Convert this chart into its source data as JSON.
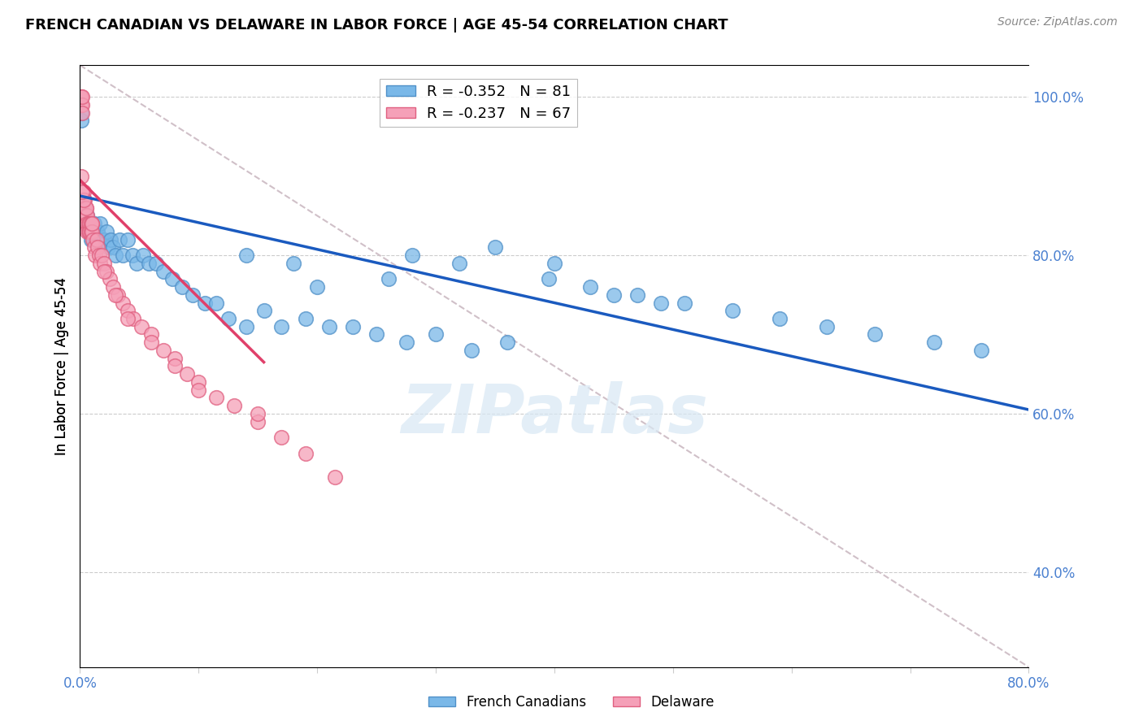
{
  "title": "FRENCH CANADIAN VS DELAWARE IN LABOR FORCE | AGE 45-54 CORRELATION CHART",
  "source": "Source: ZipAtlas.com",
  "ylabel": "In Labor Force | Age 45-54",
  "xlim": [
    0.0,
    0.8
  ],
  "ylim": [
    0.28,
    1.04
  ],
  "xticks": [
    0.0,
    0.1,
    0.2,
    0.3,
    0.4,
    0.5,
    0.6,
    0.7,
    0.8
  ],
  "xtick_labels": [
    "0.0%",
    "",
    "",
    "",
    "",
    "",
    "",
    "",
    "80.0%"
  ],
  "yticks": [
    0.4,
    0.6,
    0.8,
    1.0
  ],
  "ytick_labels": [
    "40.0%",
    "60.0%",
    "80.0%",
    "100.0%"
  ],
  "blue_R": -0.352,
  "blue_N": 81,
  "pink_R": -0.237,
  "pink_N": 67,
  "blue_label": "French Canadians",
  "pink_label": "Delaware",
  "blue_dot_color": "#7ab8e8",
  "blue_edge_color": "#5090c8",
  "pink_dot_color": "#f5a0b8",
  "pink_edge_color": "#e06080",
  "blue_line_color": "#1a5abf",
  "pink_line_color": "#e0406a",
  "ref_line_color": "#d0c0c8",
  "grid_color": "#cccccc",
  "axis_tick_color": "#4a80d0",
  "watermark": "ZIPatlas",
  "watermark_color": "#d8e8f4",
  "blue_trend_x0": 0.0,
  "blue_trend_y0": 0.875,
  "blue_trend_x1": 0.8,
  "blue_trend_y1": 0.605,
  "pink_trend_x0": 0.0,
  "pink_trend_y0": 0.895,
  "pink_trend_x1": 0.155,
  "pink_trend_y1": 0.665,
  "ref_line_x0": 0.0,
  "ref_line_y0": 1.04,
  "ref_line_x1": 0.8,
  "ref_line_y1": 0.28,
  "french_canadian_x": [
    0.001,
    0.001,
    0.002,
    0.002,
    0.003,
    0.003,
    0.004,
    0.004,
    0.005,
    0.005,
    0.006,
    0.006,
    0.007,
    0.007,
    0.008,
    0.008,
    0.009,
    0.009,
    0.01,
    0.01,
    0.011,
    0.011,
    0.012,
    0.013,
    0.014,
    0.015,
    0.016,
    0.017,
    0.018,
    0.02,
    0.022,
    0.024,
    0.026,
    0.028,
    0.03,
    0.033,
    0.036,
    0.04,
    0.044,
    0.048,
    0.053,
    0.058,
    0.064,
    0.07,
    0.078,
    0.086,
    0.095,
    0.105,
    0.115,
    0.125,
    0.14,
    0.155,
    0.17,
    0.19,
    0.21,
    0.23,
    0.25,
    0.275,
    0.3,
    0.33,
    0.36,
    0.395,
    0.43,
    0.47,
    0.51,
    0.55,
    0.59,
    0.63,
    0.67,
    0.72,
    0.76,
    0.35,
    0.4,
    0.28,
    0.32,
    0.18,
    0.14,
    0.26,
    0.2,
    0.45,
    0.49
  ],
  "french_canadian_y": [
    0.97,
    0.98,
    0.87,
    0.86,
    0.87,
    0.86,
    0.85,
    0.86,
    0.84,
    0.85,
    0.84,
    0.85,
    0.83,
    0.84,
    0.84,
    0.83,
    0.83,
    0.82,
    0.84,
    0.83,
    0.83,
    0.82,
    0.84,
    0.82,
    0.83,
    0.83,
    0.82,
    0.84,
    0.82,
    0.82,
    0.83,
    0.81,
    0.82,
    0.81,
    0.8,
    0.82,
    0.8,
    0.82,
    0.8,
    0.79,
    0.8,
    0.79,
    0.79,
    0.78,
    0.77,
    0.76,
    0.75,
    0.74,
    0.74,
    0.72,
    0.71,
    0.73,
    0.71,
    0.72,
    0.71,
    0.71,
    0.7,
    0.69,
    0.7,
    0.68,
    0.69,
    0.77,
    0.76,
    0.75,
    0.74,
    0.73,
    0.72,
    0.71,
    0.7,
    0.69,
    0.68,
    0.81,
    0.79,
    0.8,
    0.79,
    0.79,
    0.8,
    0.77,
    0.76,
    0.75,
    0.74
  ],
  "delaware_x": [
    0.001,
    0.001,
    0.001,
    0.002,
    0.002,
    0.002,
    0.003,
    0.003,
    0.003,
    0.003,
    0.004,
    0.004,
    0.004,
    0.005,
    0.005,
    0.005,
    0.006,
    0.006,
    0.006,
    0.007,
    0.007,
    0.008,
    0.008,
    0.009,
    0.009,
    0.01,
    0.01,
    0.011,
    0.012,
    0.013,
    0.014,
    0.015,
    0.016,
    0.017,
    0.018,
    0.02,
    0.022,
    0.025,
    0.028,
    0.032,
    0.036,
    0.04,
    0.045,
    0.052,
    0.06,
    0.07,
    0.08,
    0.09,
    0.1,
    0.115,
    0.13,
    0.15,
    0.17,
    0.19,
    0.215,
    0.15,
    0.08,
    0.1,
    0.06,
    0.04,
    0.03,
    0.02,
    0.01,
    0.005,
    0.003,
    0.002,
    0.001
  ],
  "delaware_y": [
    1.0,
    1.0,
    0.99,
    0.99,
    0.98,
    1.0,
    0.88,
    0.87,
    0.86,
    0.85,
    0.87,
    0.86,
    0.85,
    0.86,
    0.85,
    0.84,
    0.85,
    0.84,
    0.83,
    0.84,
    0.83,
    0.84,
    0.83,
    0.84,
    0.83,
    0.84,
    0.83,
    0.82,
    0.81,
    0.8,
    0.82,
    0.81,
    0.8,
    0.79,
    0.8,
    0.79,
    0.78,
    0.77,
    0.76,
    0.75,
    0.74,
    0.73,
    0.72,
    0.71,
    0.7,
    0.68,
    0.67,
    0.65,
    0.64,
    0.62,
    0.61,
    0.59,
    0.57,
    0.55,
    0.52,
    0.6,
    0.66,
    0.63,
    0.69,
    0.72,
    0.75,
    0.78,
    0.84,
    0.86,
    0.87,
    0.88,
    0.9
  ]
}
